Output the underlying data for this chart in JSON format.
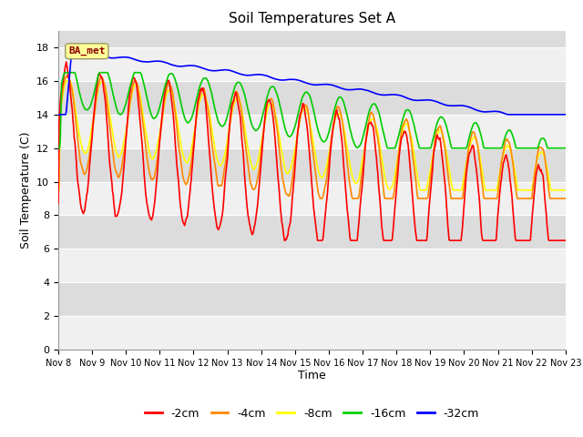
{
  "title": "Soil Temperatures Set A",
  "xlabel": "Time",
  "ylabel": "Soil Temperature (C)",
  "ylim": [
    0,
    19
  ],
  "yticks": [
    0,
    2,
    4,
    6,
    8,
    10,
    12,
    14,
    16,
    18
  ],
  "xtick_labels": [
    "Nov 8",
    "Nov 9",
    "Nov 10",
    "Nov 11",
    "Nov 12",
    "Nov 13",
    "Nov 14",
    "Nov 15",
    "Nov 16",
    "Nov 17",
    "Nov 18",
    "Nov 19",
    "Nov 20",
    "Nov 21",
    "Nov 22",
    "Nov 23"
  ],
  "legend_labels": [
    "-2cm",
    "-4cm",
    "-8cm",
    "-16cm",
    "-32cm"
  ],
  "colors": {
    "-2cm": "#ff0000",
    "-4cm": "#ff8800",
    "-8cm": "#ffff00",
    "-16cm": "#00cc00",
    "-32cm": "#0000ff"
  },
  "annotation_text": "BA_met",
  "annotation_color": "#8B0000",
  "annotation_bg": "#ffff99",
  "band_light": "#f0f0f0",
  "band_dark": "#dcdcdc",
  "fig_bg": "#ffffff",
  "linewidth": 1.2
}
